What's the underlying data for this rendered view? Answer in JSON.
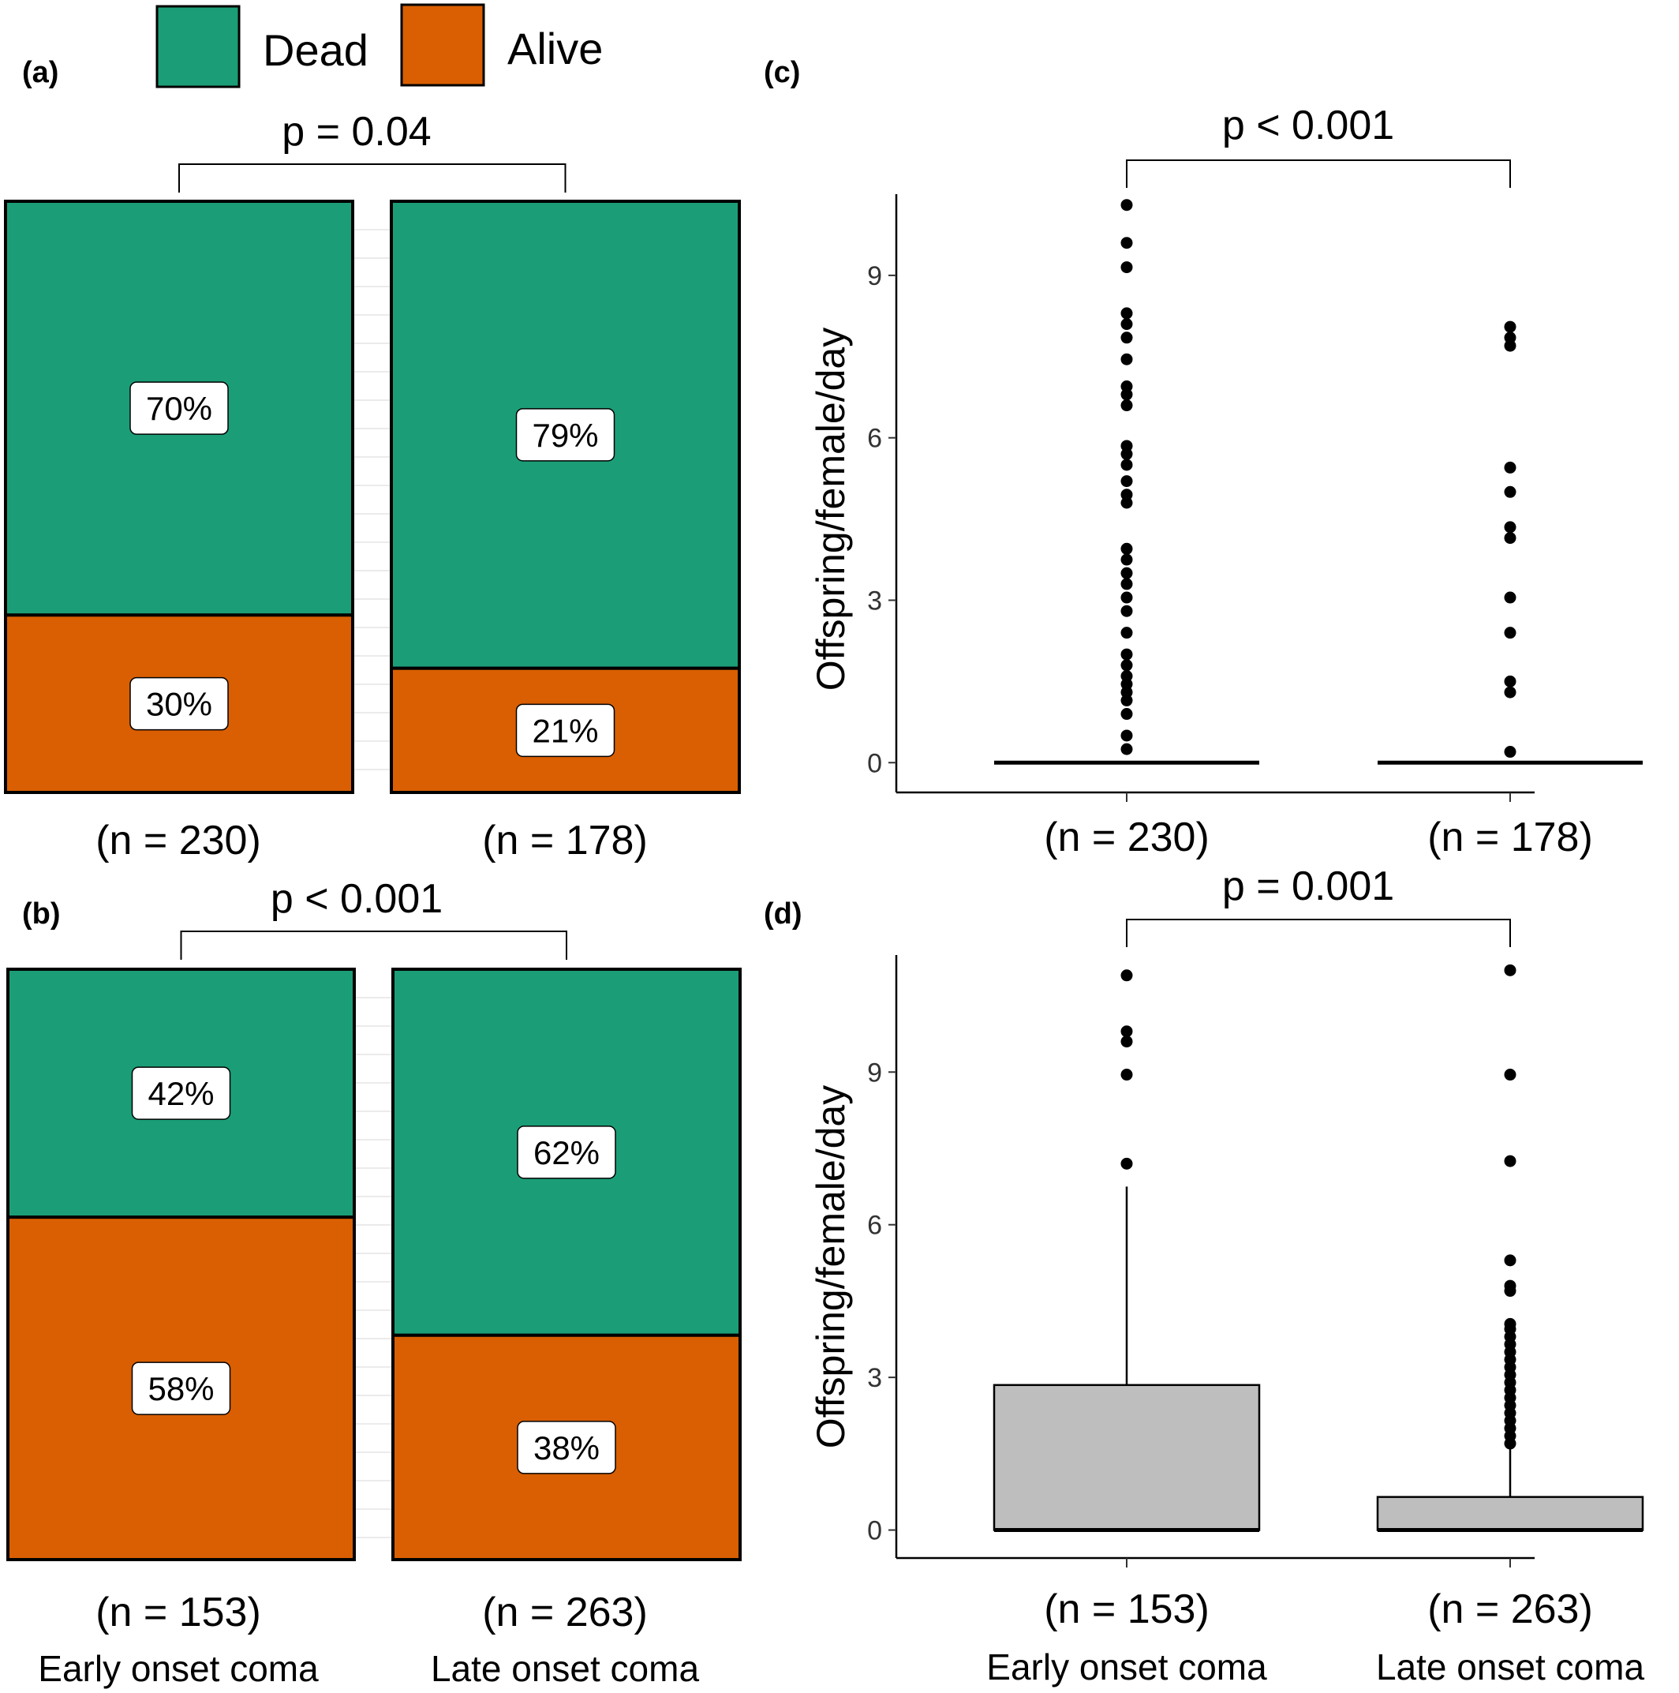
{
  "legend": {
    "items": [
      {
        "label": "Dead",
        "color": "#1b9e77"
      },
      {
        "label": "Alive",
        "color": "#d95f02"
      }
    ]
  },
  "colors": {
    "dead": "#1b9e77",
    "alive": "#d95f02",
    "box_fill": "#bebebe"
  },
  "chart_data": [
    {
      "panel": "(a)",
      "type": "bar",
      "stacked": true,
      "categories": [
        "(n = 230)",
        "(n = 178)"
      ],
      "series": [
        {
          "name": "Dead",
          "values": [
            70,
            79
          ],
          "labels": [
            "70%",
            "79%"
          ]
        },
        {
          "name": "Alive",
          "values": [
            30,
            21
          ],
          "labels": [
            "30%",
            "21%"
          ]
        }
      ],
      "annotation": "p = 0.04"
    },
    {
      "panel": "(b)",
      "type": "bar",
      "stacked": true,
      "categories": [
        "(n = 153)",
        "(n = 263)"
      ],
      "category_names": [
        "Early onset coma",
        "Late onset coma"
      ],
      "series": [
        {
          "name": "Dead",
          "values": [
            42,
            62
          ],
          "labels": [
            "42%",
            "62%"
          ]
        },
        {
          "name": "Alive",
          "values": [
            58,
            38
          ],
          "labels": [
            "58%",
            "38%"
          ]
        }
      ],
      "annotation": "p < 0.001"
    },
    {
      "panel": "(c)",
      "type": "scatter",
      "subtype": "boxplot",
      "categories": [
        "(n = 230)",
        "(n = 178)"
      ],
      "ylabel": "Offspring/female/day",
      "yticks": [
        0,
        3,
        6,
        9
      ],
      "ylim": [
        -0.55,
        10.5
      ],
      "annotation": "p < 0.001",
      "boxes": [
        {
          "q1": 0,
          "median": 0,
          "q3": 0,
          "whisker_low": 0,
          "whisker_high": 0
        },
        {
          "q1": 0,
          "median": 0,
          "q3": 0,
          "whisker_low": 0,
          "whisker_high": 0
        }
      ],
      "outliers": [
        [
          10.3,
          9.6,
          9.15,
          8.3,
          8.1,
          7.85,
          7.45,
          6.95,
          6.8,
          6.6,
          5.85,
          5.7,
          5.5,
          5.2,
          4.95,
          4.8,
          3.95,
          3.75,
          3.5,
          3.3,
          3.05,
          2.8,
          2.4,
          2.0,
          1.8,
          1.6,
          1.45,
          1.3,
          1.15,
          0.9,
          0.5,
          0.25
        ],
        [
          8.05,
          7.85,
          7.7,
          5.45,
          5.0,
          4.35,
          4.15,
          3.05,
          2.4,
          1.5,
          1.3,
          0.2
        ]
      ]
    },
    {
      "panel": "(d)",
      "type": "scatter",
      "subtype": "boxplot",
      "categories": [
        "(n = 153)",
        "(n = 263)"
      ],
      "category_names": [
        "Early onset coma",
        "Late onset coma"
      ],
      "ylabel": "Offspring/female/day",
      "yticks": [
        0,
        3,
        6,
        9
      ],
      "ylim": [
        -0.55,
        11.3
      ],
      "annotation": "p = 0.001",
      "boxes": [
        {
          "q1": 0,
          "median": 0,
          "q3": 2.85,
          "whisker_low": 0,
          "whisker_high": 6.75
        },
        {
          "q1": 0,
          "median": 0,
          "q3": 0.65,
          "whisker_low": 0,
          "whisker_high": 1.6
        }
      ],
      "outliers": [
        [
          10.9,
          9.8,
          9.6,
          8.95,
          7.2
        ],
        [
          11.0,
          8.95,
          7.25,
          5.3,
          4.8,
          4.7,
          4.05,
          3.95,
          3.8,
          3.65,
          3.5,
          3.35,
          3.2,
          3.05,
          2.9,
          2.75,
          2.6,
          2.45,
          2.3,
          2.15,
          2.0,
          1.85,
          1.7
        ]
      ]
    }
  ]
}
